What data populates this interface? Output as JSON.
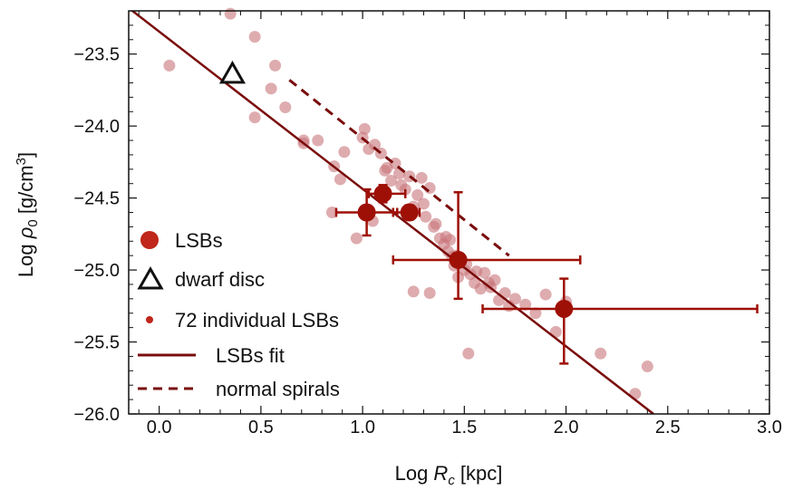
{
  "chart_data": {
    "type": "scatter",
    "title": "",
    "xlabel": {
      "prefix": "Log ",
      "var": "R",
      "sub": "c",
      "suffix": " [kpc]"
    },
    "ylabel": {
      "prefix": "Log ",
      "var": "ρ",
      "sub": "0",
      "mid": " [g/cm",
      "sup": "3",
      "suffix": "]"
    },
    "xlim": [
      -0.15,
      3.0
    ],
    "ylim": [
      -26.0,
      -23.2
    ],
    "xticks": [
      0.0,
      0.5,
      1.0,
      1.5,
      2.0,
      2.5,
      3.0
    ],
    "xtick_labels": [
      "0.0",
      "0.5",
      "1.0",
      "1.5",
      "2.0",
      "2.5",
      "3.0"
    ],
    "yticks": [
      -23.5,
      -24.0,
      -24.5,
      -25.0,
      -25.5,
      -26.0
    ],
    "ytick_labels": [
      "−23.5",
      "−24.0",
      "−24.5",
      "−25.0",
      "−25.5",
      "−26.0"
    ],
    "colors": {
      "lsb": "#9e1006",
      "fit": "#7a0c0c",
      "individual": "#c8757a",
      "legend_dot": "#c0261a",
      "axis": "#111111"
    },
    "legend": {
      "placement": "bottom-left",
      "items": [
        {
          "label": "LSBs",
          "marker": "big-dot"
        },
        {
          "label": "dwarf disc",
          "marker": "triangle"
        },
        {
          "label": "72 individual LSBs",
          "marker": "small-dot"
        },
        {
          "label": "LSBs fit",
          "marker": "solid-line"
        },
        {
          "label": "normal spirals",
          "marker": "dashed-line"
        }
      ]
    },
    "lsb_binned": [
      {
        "x": 1.02,
        "y": -24.6,
        "xerr": [
          0.15,
          0.15
        ],
        "yerr": [
          0.16,
          0.16
        ]
      },
      {
        "x": 1.1,
        "y": -24.47,
        "xerr": [
          0.07,
          0.11
        ],
        "yerr": [
          0.06,
          0.06
        ]
      },
      {
        "x": 1.23,
        "y": -24.6,
        "xerr": [
          0.08,
          0.05
        ],
        "yerr": [
          0.05,
          0.05
        ]
      },
      {
        "x": 1.47,
        "y": -24.93,
        "xerr": [
          0.32,
          0.6
        ],
        "yerr": [
          0.27,
          0.47
        ]
      },
      {
        "x": 1.99,
        "y": -25.27,
        "xerr": [
          0.4,
          0.95
        ],
        "yerr": [
          0.38,
          0.21
        ]
      }
    ],
    "dwarf_disc": {
      "x": 0.36,
      "y": -23.64
    },
    "lsb_fit": {
      "x": [
        -0.15,
        2.43
      ],
      "y": [
        -23.18,
        -26.0
      ]
    },
    "normal_spirals": {
      "x": [
        0.64,
        1.72
      ],
      "y": [
        -23.68,
        -24.9
      ]
    },
    "individual_lsbs": {
      "x": [
        0.05,
        0.35,
        0.47,
        0.47,
        0.55,
        0.57,
        0.62,
        0.71,
        0.71,
        0.78,
        0.86,
        0.89,
        0.91,
        1.0,
        1.01,
        1.03,
        1.06,
        1.09,
        1.11,
        1.12,
        1.14,
        1.16,
        1.18,
        1.19,
        1.21,
        1.23,
        1.25,
        1.27,
        1.29,
        1.3,
        1.31,
        1.33,
        1.35,
        1.36,
        1.38,
        1.4,
        1.41,
        1.42,
        1.43,
        1.44,
        1.45,
        1.46,
        1.47,
        1.48,
        1.5,
        1.51,
        1.52,
        1.53,
        1.55,
        1.56,
        1.58,
        1.6,
        1.62,
        1.63,
        1.65,
        1.67,
        1.7,
        1.72,
        1.75,
        1.8,
        1.85,
        1.9,
        1.95,
        2.0,
        2.17,
        2.34,
        2.4,
        1.33,
        1.05,
        0.97,
        0.85,
        1.25
      ],
      "y": [
        -23.58,
        -23.22,
        -23.38,
        -23.94,
        -23.74,
        -23.58,
        -23.87,
        -24.1,
        -24.12,
        -24.1,
        -24.28,
        -24.37,
        -24.18,
        -24.08,
        -24.02,
        -24.16,
        -24.13,
        -24.19,
        -24.31,
        -24.29,
        -24.38,
        -24.26,
        -24.33,
        -24.41,
        -24.44,
        -24.35,
        -24.56,
        -24.48,
        -24.36,
        -24.54,
        -24.63,
        -24.43,
        -24.7,
        -24.68,
        -24.78,
        -24.82,
        -24.77,
        -24.87,
        -24.79,
        -24.91,
        -24.97,
        -24.9,
        -25.05,
        -24.94,
        -25.0,
        -24.96,
        -25.58,
        -25.03,
        -25.09,
        -25.01,
        -25.13,
        -25.02,
        -25.09,
        -25.12,
        -25.07,
        -25.21,
        -25.16,
        -25.25,
        -25.2,
        -25.24,
        -25.3,
        -25.17,
        -25.43,
        -25.22,
        -25.58,
        -25.86,
        -25.67,
        -25.16,
        -24.66,
        -24.78,
        -24.6,
        -25.15
      ]
    }
  }
}
